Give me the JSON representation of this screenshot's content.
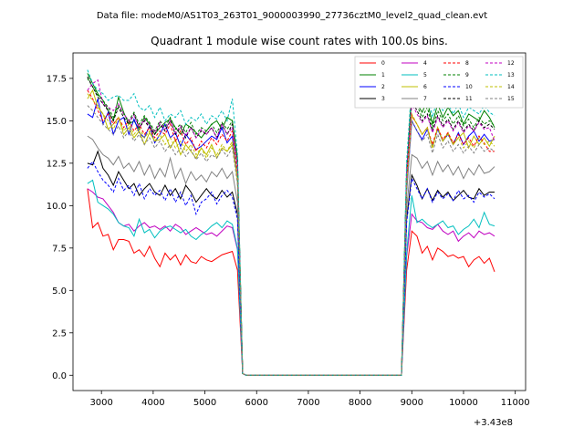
{
  "chart_data": {
    "type": "line",
    "suptitle": "Data file: modeM0/AS1T03_263T01_9000003990_27736cztM0_level2_quad_clean.evt",
    "title": "Quadrant 1 module wise count rates with 100.0s bins.",
    "xlabel": "",
    "ylabel": "",
    "x_offset_label": "+3.43e8",
    "xlim": [
      2450,
      11200
    ],
    "ylim": [
      -0.9,
      19.0
    ],
    "xticks": [
      3000,
      4000,
      5000,
      6000,
      7000,
      8000,
      9000,
      10000,
      11000
    ],
    "yticks": [
      0.0,
      2.5,
      5.0,
      7.5,
      10.0,
      12.5,
      15.0,
      17.5
    ],
    "ytick_labels": [
      "0.0",
      "2.5",
      "5.0",
      "7.5",
      "10.0",
      "12.5",
      "15.0",
      "17.5"
    ],
    "gap": {
      "start": 5800,
      "end": 8800,
      "value": 0
    },
    "segment1": {
      "x_start": 2730,
      "x_step": 100,
      "count": 31
    },
    "segment2": {
      "x_start": 8900,
      "x_step": 100,
      "count": 18
    },
    "legend_position": "upper right",
    "series": [
      {
        "name": "0",
        "color": "#ff0000",
        "dashed": false,
        "seg1": [
          11.0,
          8.7,
          9.0,
          8.2,
          8.3,
          7.4,
          8.0,
          8.0,
          7.9,
          7.2,
          7.4,
          7.0,
          7.6,
          6.9,
          6.4,
          7.2,
          6.8,
          7.1,
          6.5,
          7.1,
          6.7,
          6.6,
          7.0,
          6.8,
          6.7,
          6.9,
          7.1,
          7.2,
          7.3,
          6.2,
          0.1
        ],
        "seg2": [
          6.2,
          8.5,
          8.2,
          7.2,
          7.6,
          6.8,
          7.5,
          7.3,
          7.0,
          7.1,
          6.9,
          7.0,
          6.4,
          6.8,
          7.0,
          6.6,
          6.9,
          6.1
        ]
      },
      {
        "name": "1",
        "color": "#008000",
        "dashed": false,
        "seg1": [
          17.8,
          17.2,
          16.6,
          16.2,
          15.6,
          15.0,
          16.4,
          15.5,
          14.8,
          15.0,
          14.5,
          15.2,
          14.8,
          14.2,
          14.6,
          14.9,
          15.1,
          14.6,
          14.2,
          14.8,
          14.6,
          14.3,
          14.0,
          14.4,
          14.8,
          15.0,
          14.5,
          15.2,
          15.0,
          12.8,
          0.1
        ],
        "seg2": [
          12.0,
          16.8,
          16.0,
          15.5,
          16.2,
          14.8,
          16.0,
          15.2,
          15.8,
          15.3,
          15.6,
          14.8,
          15.4,
          15.2,
          15.0,
          15.6,
          15.2,
          14.6
        ]
      },
      {
        "name": "2",
        "color": "#0000ff",
        "dashed": false,
        "seg1": [
          15.4,
          15.2,
          16.3,
          14.8,
          15.5,
          14.2,
          15.0,
          15.2,
          14.2,
          15.1,
          14.3,
          14.0,
          14.7,
          13.7,
          14.2,
          14.8,
          14.0,
          14.3,
          13.5,
          14.2,
          13.8,
          13.3,
          13.5,
          13.8,
          14.1,
          13.9,
          14.6,
          13.7,
          14.1,
          11.5,
          0.1
        ],
        "seg2": [
          10.8,
          15.0,
          14.4,
          13.9,
          14.5,
          13.5,
          14.5,
          13.8,
          14.2,
          13.6,
          14.3,
          13.6,
          14.1,
          14.4,
          13.8,
          14.2,
          13.8,
          13.9
        ]
      },
      {
        "name": "3",
        "color": "#000000",
        "dashed": false,
        "seg1": [
          12.5,
          12.4,
          13.2,
          12.2,
          11.8,
          11.2,
          12.0,
          11.5,
          11.0,
          11.3,
          10.6,
          11.0,
          11.3,
          10.8,
          10.6,
          11.2,
          10.6,
          11.0,
          10.4,
          11.2,
          10.8,
          10.2,
          10.6,
          11.0,
          10.6,
          10.4,
          10.9,
          10.5,
          10.8,
          9.5,
          0.1
        ],
        "seg2": [
          9.2,
          11.8,
          11.2,
          10.4,
          11.0,
          10.3,
          10.9,
          10.5,
          10.8,
          10.3,
          10.6,
          10.9,
          10.5,
          10.4,
          11.0,
          10.6,
          10.8,
          10.8
        ]
      },
      {
        "name": "4",
        "color": "#c000c0",
        "dashed": false,
        "seg1": [
          11.0,
          10.8,
          10.5,
          10.4,
          10.0,
          9.6,
          9.0,
          8.8,
          8.9,
          8.5,
          8.8,
          9.0,
          8.7,
          8.8,
          8.6,
          8.8,
          8.5,
          8.9,
          8.7,
          8.3,
          8.5,
          8.7,
          8.5,
          8.3,
          8.4,
          8.2,
          8.5,
          8.8,
          8.7,
          7.4,
          0.1
        ],
        "seg2": [
          7.0,
          9.5,
          9.1,
          9.0,
          8.7,
          8.6,
          8.9,
          8.5,
          8.3,
          8.5,
          7.9,
          8.2,
          8.4,
          8.1,
          8.5,
          8.3,
          8.4,
          8.2
        ]
      },
      {
        "name": "5",
        "color": "#00bfbf",
        "dashed": false,
        "seg1": [
          11.3,
          11.5,
          10.2,
          10.0,
          9.8,
          9.5,
          9.0,
          8.8,
          8.7,
          8.2,
          9.2,
          8.4,
          8.6,
          8.1,
          8.5,
          8.7,
          8.8,
          8.6,
          8.4,
          8.6,
          8.2,
          8.0,
          8.3,
          8.5,
          8.8,
          9.0,
          8.7,
          9.1,
          8.9,
          7.5,
          0.1
        ],
        "seg2": [
          7.2,
          10.6,
          9.0,
          9.2,
          8.9,
          8.7,
          8.9,
          9.1,
          8.7,
          8.8,
          8.3,
          8.6,
          8.8,
          9.2,
          8.7,
          9.6,
          8.9,
          8.8
        ]
      },
      {
        "name": "6",
        "color": "#bfbf00",
        "dashed": false,
        "seg1": [
          16.3,
          16.8,
          15.8,
          15.4,
          14.5,
          14.8,
          15.2,
          14.2,
          14.6,
          14.0,
          14.4,
          13.6,
          14.3,
          13.8,
          13.9,
          14.2,
          13.4,
          13.9,
          13.0,
          13.6,
          13.2,
          12.8,
          13.4,
          13.0,
          13.6,
          12.8,
          13.4,
          13.2,
          13.6,
          11.5,
          0.1
        ],
        "seg2": [
          11.0,
          15.3,
          14.8,
          14.2,
          14.6,
          13.4,
          14.6,
          13.8,
          14.3,
          13.6,
          14.0,
          14.3,
          13.4,
          14.1,
          13.6,
          14.0,
          13.5,
          14.1
        ]
      },
      {
        "name": "7",
        "color": "#808080",
        "dashed": false,
        "seg1": [
          14.1,
          13.9,
          13.4,
          13.0,
          12.8,
          12.4,
          12.9,
          12.2,
          12.5,
          12.0,
          12.6,
          11.8,
          12.4,
          11.6,
          12.2,
          11.7,
          12.8,
          11.6,
          12.2,
          11.3,
          12.0,
          11.5,
          11.8,
          11.4,
          12.0,
          11.7,
          12.2,
          11.6,
          12.0,
          10.2,
          0.1
        ],
        "seg2": [
          9.8,
          13.0,
          12.8,
          12.2,
          12.6,
          11.8,
          12.6,
          12.0,
          12.4,
          11.8,
          12.3,
          11.6,
          12.2,
          11.8,
          12.4,
          11.9,
          12.0,
          12.3
        ]
      },
      {
        "name": "8",
        "color": "#ff0000",
        "dashed": true,
        "seg1": [
          16.8,
          16.3,
          15.6,
          15.0,
          15.4,
          14.8,
          15.2,
          14.6,
          15.0,
          14.4,
          14.8,
          14.2,
          14.6,
          14.0,
          14.4,
          14.2,
          14.8,
          13.8,
          14.4,
          13.6,
          14.0,
          13.2,
          13.8,
          13.4,
          14.0,
          13.6,
          14.2,
          13.8,
          14.4,
          12.0,
          0.1
        ],
        "seg2": [
          11.6,
          15.3,
          14.8,
          14.2,
          14.6,
          13.6,
          14.6,
          13.9,
          14.3,
          13.7,
          14.2,
          13.6,
          14.0,
          13.5,
          14.1,
          13.7,
          13.2,
          13.2
        ]
      },
      {
        "name": "9",
        "color": "#008000",
        "dashed": true,
        "seg1": [
          17.5,
          17.0,
          16.5,
          16.2,
          15.8,
          15.2,
          15.9,
          15.4,
          15.0,
          15.5,
          14.8,
          15.3,
          14.9,
          14.4,
          15.0,
          14.6,
          15.2,
          14.5,
          14.8,
          14.3,
          14.9,
          14.2,
          14.6,
          14.4,
          14.8,
          14.3,
          14.9,
          14.5,
          15.0,
          12.6,
          0.1
        ],
        "seg2": [
          12.2,
          16.6,
          15.9,
          15.2,
          15.8,
          14.6,
          15.6,
          15.0,
          15.4,
          14.8,
          15.3,
          14.7,
          15.1,
          14.6,
          15.2,
          14.8,
          15.0,
          14.7
        ]
      },
      {
        "name": "10",
        "color": "#0000ff",
        "dashed": true,
        "seg1": [
          12.2,
          12.6,
          12.0,
          11.5,
          11.2,
          10.8,
          11.6,
          10.9,
          11.2,
          10.6,
          11.3,
          10.4,
          11.0,
          10.6,
          10.9,
          10.3,
          11.0,
          10.2,
          10.8,
          10.0,
          10.6,
          9.5,
          10.2,
          10.4,
          10.8,
          10.1,
          10.6,
          10.9,
          10.5,
          9.2,
          0.1
        ],
        "seg2": [
          9.0,
          11.6,
          11.0,
          10.4,
          11.0,
          10.2,
          10.8,
          10.4,
          10.7,
          10.3,
          10.9,
          10.4,
          10.6,
          10.2,
          10.8,
          10.5,
          10.7,
          10.4
        ]
      },
      {
        "name": "11",
        "color": "#000000",
        "dashed": true,
        "seg1": [
          17.6,
          17.0,
          16.4,
          16.0,
          15.6,
          15.0,
          15.8,
          15.2,
          14.8,
          15.4,
          14.6,
          15.0,
          14.6,
          14.2,
          14.8,
          14.4,
          15.0,
          14.2,
          14.6,
          14.0,
          14.6,
          14.0,
          14.4,
          14.2,
          14.6,
          14.0,
          14.8,
          14.2,
          14.8,
          12.4,
          0.1
        ],
        "seg2": [
          12.0,
          16.2,
          15.6,
          15.0,
          15.4,
          14.4,
          15.3,
          14.7,
          15.1,
          14.5,
          15.0,
          14.4,
          14.8,
          14.4,
          15.0,
          14.6,
          14.8,
          14.5
        ]
      },
      {
        "name": "12",
        "color": "#c000c0",
        "dashed": true,
        "seg1": [
          16.8,
          17.2,
          17.4,
          16.0,
          15.8,
          15.6,
          16.0,
          15.4,
          15.0,
          15.3,
          14.6,
          15.1,
          14.7,
          14.3,
          14.9,
          14.5,
          15.0,
          14.3,
          14.7,
          14.1,
          14.6,
          14.0,
          14.5,
          14.2,
          14.6,
          14.0,
          14.8,
          14.2,
          14.6,
          12.4,
          0.1
        ],
        "seg2": [
          12.0,
          16.0,
          15.4,
          14.9,
          15.3,
          14.3,
          15.2,
          14.6,
          15.0,
          14.4,
          14.9,
          14.3,
          14.7,
          14.4,
          14.9,
          14.5,
          14.6,
          13.8
        ]
      },
      {
        "name": "13",
        "color": "#00bfbf",
        "dashed": true,
        "seg1": [
          18.0,
          17.2,
          16.8,
          16.6,
          16.2,
          16.4,
          16.5,
          16.2,
          16.2,
          16.6,
          15.8,
          15.6,
          15.9,
          15.2,
          15.8,
          15.0,
          15.4,
          15.2,
          15.6,
          14.8,
          15.2,
          15.0,
          15.4,
          14.8,
          15.3,
          15.1,
          15.6,
          15.0,
          16.3,
          13.0,
          0.1
        ],
        "seg2": [
          12.6,
          17.2,
          16.6,
          16.0,
          16.8,
          15.2,
          16.4,
          15.6,
          16.0,
          15.4,
          16.0,
          15.2,
          15.8,
          15.6,
          15.4,
          15.9,
          15.5,
          15.3
        ]
      },
      {
        "name": "14",
        "color": "#bfbf00",
        "dashed": true,
        "seg1": [
          16.6,
          16.2,
          15.9,
          15.4,
          15.0,
          14.5,
          15.2,
          14.4,
          14.8,
          14.2,
          14.6,
          14.0,
          14.4,
          13.8,
          14.2,
          13.6,
          14.0,
          13.4,
          13.8,
          13.2,
          13.6,
          13.0,
          13.4,
          12.8,
          13.4,
          13.0,
          13.6,
          13.2,
          13.8,
          11.6,
          0.1
        ],
        "seg2": [
          11.2,
          15.4,
          14.8,
          14.2,
          14.6,
          13.4,
          14.6,
          13.8,
          14.2,
          13.6,
          14.0,
          13.4,
          13.8,
          13.4,
          14.0,
          13.6,
          13.8,
          13.5
        ]
      },
      {
        "name": "15",
        "color": "#808080",
        "dashed": true,
        "seg1": [
          15.9,
          15.6,
          15.2,
          14.8,
          14.5,
          14.2,
          14.7,
          14.0,
          14.4,
          13.8,
          14.2,
          13.6,
          14.0,
          13.4,
          13.8,
          13.2,
          13.6,
          13.0,
          13.4,
          12.9,
          13.3,
          12.7,
          13.1,
          12.6,
          13.0,
          12.8,
          13.3,
          12.9,
          13.4,
          11.3,
          0.1
        ],
        "seg2": [
          10.9,
          15.0,
          14.4,
          13.8,
          14.2,
          13.1,
          14.2,
          13.4,
          13.8,
          13.2,
          13.6,
          13.1,
          13.5,
          13.1,
          13.6,
          13.2,
          13.4,
          13.2
        ]
      }
    ]
  }
}
